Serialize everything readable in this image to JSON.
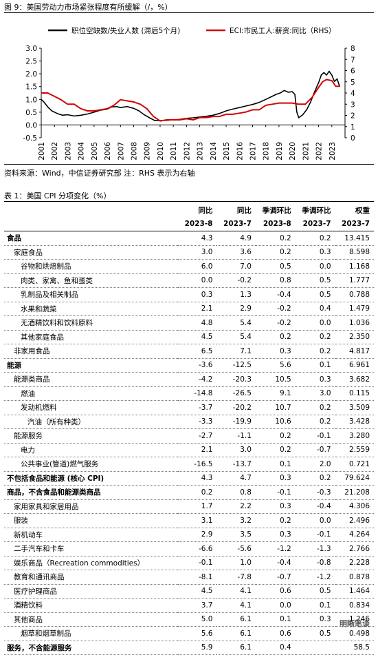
{
  "figure": {
    "title": "图 9：美国劳动力市场紧张程度有所缓解（/，%）",
    "source": "资料来源：Wind，中信证券研究部  注：RHS 表示为右轴"
  },
  "chart_data": {
    "type": "line",
    "series": [
      {
        "name": "职位空缺数/失业人数 (滞后5个月)",
        "axis": "left",
        "color": "#000000",
        "x": [
          2001.0,
          2001.2,
          2001.5,
          2001.8,
          2002.2,
          2002.6,
          2003.0,
          2003.5,
          2004.0,
          2004.5,
          2005.0,
          2005.5,
          2006.0,
          2006.3,
          2006.7,
          2007.0,
          2007.5,
          2008.0,
          2008.4,
          2008.8,
          2009.2,
          2009.6,
          2010.0,
          2010.5,
          2011.0,
          2011.5,
          2012.0,
          2012.5,
          2013.0,
          2013.5,
          2014.0,
          2014.5,
          2015.0,
          2015.5,
          2016.0,
          2016.5,
          2017.0,
          2017.5,
          2018.0,
          2018.4,
          2018.8,
          2019.1,
          2019.4,
          2019.7,
          2020.0,
          2020.2,
          2020.35,
          2020.5,
          2020.8,
          2021.1,
          2021.4,
          2021.7,
          2022.0,
          2022.2,
          2022.4,
          2022.6,
          2022.8,
          2023.0,
          2023.2,
          2023.4,
          2023.6
        ],
        "values": [
          1.0,
          0.9,
          0.7,
          0.55,
          0.45,
          0.38,
          0.4,
          0.35,
          0.38,
          0.43,
          0.5,
          0.58,
          0.62,
          0.7,
          0.72,
          0.68,
          0.72,
          0.65,
          0.55,
          0.4,
          0.28,
          0.17,
          0.17,
          0.18,
          0.2,
          0.22,
          0.26,
          0.28,
          0.31,
          0.34,
          0.38,
          0.45,
          0.55,
          0.62,
          0.68,
          0.74,
          0.8,
          0.88,
          1.0,
          1.1,
          1.2,
          1.25,
          1.35,
          1.28,
          1.3,
          1.2,
          0.5,
          0.28,
          0.4,
          0.6,
          0.9,
          1.3,
          1.65,
          1.95,
          2.05,
          1.95,
          2.1,
          1.95,
          1.7,
          1.8,
          1.5
        ]
      },
      {
        "name": "ECI:市民工人:薪资:同比（RHS）",
        "axis": "right",
        "color": "#d40000",
        "x": [
          2001.0,
          2001.5,
          2002.0,
          2002.5,
          2003.0,
          2003.5,
          2004.0,
          2004.5,
          2005.0,
          2005.5,
          2006.0,
          2006.5,
          2007.0,
          2007.5,
          2008.0,
          2008.5,
          2009.0,
          2009.5,
          2010.0,
          2010.5,
          2011.0,
          2011.5,
          2012.0,
          2012.5,
          2013.0,
          2013.5,
          2014.0,
          2014.5,
          2015.0,
          2015.5,
          2016.0,
          2016.5,
          2017.0,
          2017.5,
          2018.0,
          2018.5,
          2019.0,
          2019.5,
          2020.0,
          2020.5,
          2021.0,
          2021.5,
          2022.0,
          2022.3,
          2022.6,
          2023.0,
          2023.3,
          2023.6
        ],
        "values": [
          4.0,
          4.0,
          3.7,
          3.4,
          3.0,
          3.0,
          2.6,
          2.4,
          2.4,
          2.5,
          2.6,
          2.9,
          3.4,
          3.3,
          3.2,
          3.0,
          2.6,
          1.9,
          1.5,
          1.6,
          1.6,
          1.6,
          1.7,
          1.6,
          1.8,
          1.8,
          1.9,
          1.9,
          2.1,
          2.1,
          2.2,
          2.3,
          2.5,
          2.5,
          2.9,
          3.0,
          3.1,
          3.1,
          3.1,
          3.0,
          3.0,
          3.6,
          4.5,
          5.0,
          5.2,
          5.1,
          4.6,
          4.6
        ]
      }
    ],
    "y_left": {
      "ticks": [
        "-0.5",
        "0.0",
        "0.5",
        "1.0",
        "1.5",
        "2.0",
        "2.5",
        "3.0"
      ],
      "lim": [
        -0.5,
        3.0
      ]
    },
    "y_right": {
      "ticks": [
        "0",
        "1",
        "2",
        "3",
        "4",
        "5",
        "6",
        "7",
        "8"
      ],
      "lim": [
        0,
        8
      ]
    },
    "x_ticks": [
      "2001",
      "2002",
      "2003",
      "2004",
      "2005",
      "2006",
      "2007",
      "2008",
      "2009",
      "2010",
      "2011",
      "2012",
      "2013",
      "2014",
      "2015",
      "2016",
      "2017",
      "2018",
      "2019",
      "2020",
      "2021",
      "2022",
      "2023"
    ],
    "legend": "top",
    "grid": false
  },
  "table": {
    "title": "表 1：美国 CPI 分项变化（%）",
    "headers_top": [
      "",
      "同比",
      "同比",
      "季调环比",
      "季调环比",
      "权重"
    ],
    "headers_bottom": [
      "",
      "2023-8",
      "2023-7",
      "2023-8",
      "2023-7",
      "2023-7"
    ],
    "rows": [
      {
        "level": 0,
        "name": "食品",
        "v": [
          "4.3",
          "4.9",
          "0.2",
          "0.2",
          "13.415"
        ]
      },
      {
        "level": 1,
        "name": "家庭食品",
        "v": [
          "3.0",
          "3.6",
          "0.2",
          "0.3",
          "8.598"
        ]
      },
      {
        "level": 2,
        "name": "谷物和烘焙制品",
        "v": [
          "6.0",
          "7.0",
          "0.5",
          "0.0",
          "1.168"
        ]
      },
      {
        "level": 2,
        "name": "肉类、家禽、鱼和蛋类",
        "v": [
          "0.0",
          "-0.2",
          "0.8",
          "0.5",
          "1.777"
        ]
      },
      {
        "level": 2,
        "name": "乳制品及相关制品",
        "v": [
          "0.3",
          "1.3",
          "-0.4",
          "0.5",
          "0.788"
        ]
      },
      {
        "level": 2,
        "name": "水果和蔬菜",
        "v": [
          "2.1",
          "2.9",
          "-0.2",
          "0.4",
          "1.479"
        ]
      },
      {
        "level": 2,
        "name": "无酒精饮料和饮料原料",
        "v": [
          "4.8",
          "5.4",
          "-0.2",
          "0.0",
          "1.036"
        ]
      },
      {
        "level": 2,
        "name": "其他家庭食品",
        "v": [
          "4.5",
          "5.4",
          "0.2",
          "0.2",
          "2.350"
        ]
      },
      {
        "level": 1,
        "name": "非家用食品",
        "v": [
          "6.5",
          "7.1",
          "0.3",
          "0.2",
          "4.817"
        ]
      },
      {
        "level": 0,
        "name": "能源",
        "v": [
          "-3.6",
          "-12.5",
          "5.6",
          "0.1",
          "6.961"
        ]
      },
      {
        "level": 1,
        "name": "能源类商品",
        "v": [
          "-4.2",
          "-20.3",
          "10.5",
          "0.3",
          "3.682"
        ]
      },
      {
        "level": 2,
        "name": "燃油",
        "v": [
          "-14.8",
          "-26.5",
          "9.1",
          "3.0",
          "0.115"
        ]
      },
      {
        "level": 2,
        "name": "发动机燃料",
        "v": [
          "-3.7",
          "-20.2",
          "10.7",
          "0.2",
          "3.509"
        ]
      },
      {
        "level": 3,
        "name": "汽油（所有种类）",
        "v": [
          "-3.3",
          "-19.9",
          "10.6",
          "0.2",
          "3.428"
        ]
      },
      {
        "level": 1,
        "name": "能源服务",
        "v": [
          "-2.7",
          "-1.1",
          "0.2",
          "-0.1",
          "3.280"
        ]
      },
      {
        "level": 2,
        "name": "电力",
        "v": [
          "2.1",
          "3.0",
          "0.2",
          "-0.7",
          "2.559"
        ]
      },
      {
        "level": 2,
        "name": "公共事业(管道)燃气服务",
        "v": [
          "-16.5",
          "-13.7",
          "0.1",
          "2.0",
          "0.721"
        ]
      },
      {
        "level": 0,
        "name": "不包括食品和能源 (核心 CPI)",
        "v": [
          "4.3",
          "4.7",
          "0.3",
          "0.2",
          "79.624"
        ]
      },
      {
        "level": 0,
        "name": "商品，不含食品和能源类商品",
        "v": [
          "0.2",
          "0.8",
          "-0.1",
          "-0.3",
          "21.208"
        ]
      },
      {
        "level": 1,
        "name": "家用家具和家居用品",
        "v": [
          "1.7",
          "2.2",
          "0.3",
          "-0.4",
          "4.306"
        ]
      },
      {
        "level": 1,
        "name": "服装",
        "v": [
          "3.1",
          "3.2",
          "0.2",
          "0.0",
          "2.496"
        ]
      },
      {
        "level": 1,
        "name": "新机动车",
        "v": [
          "2.9",
          "3.5",
          "0.3",
          "-0.1",
          "4.264"
        ]
      },
      {
        "level": 1,
        "name": "二手汽车和卡车",
        "v": [
          "-6.6",
          "-5.6",
          "-1.2",
          "-1.3",
          "2.766"
        ]
      },
      {
        "level": 1,
        "name": "娱乐商品（Recreation commodities）",
        "v": [
          "-0.1",
          "1.0",
          "-0.4",
          "-0.8",
          "2.228"
        ]
      },
      {
        "level": 1,
        "name": "教育和通讯商品",
        "v": [
          "-8.1",
          "-7.8",
          "-0.7",
          "-1.2",
          "0.878"
        ]
      },
      {
        "level": 1,
        "name": "医疗护理商品",
        "v": [
          "4.5",
          "4.1",
          "0.6",
          "0.5",
          "1.464"
        ]
      },
      {
        "level": 1,
        "name": "酒精饮料",
        "v": [
          "3.7",
          "4.1",
          "0.0",
          "0.1",
          "0.834"
        ]
      },
      {
        "level": 1,
        "name": "其他商品",
        "v": [
          "5.0",
          "6.1",
          "0.1",
          "0.3",
          "1.246"
        ]
      },
      {
        "level": 2,
        "name": "烟草和烟草制品",
        "v": [
          "5.6",
          "6.1",
          "0.6",
          "0.5",
          "0.498"
        ]
      },
      {
        "level": 0,
        "name": "服务，不含能源服务",
        "v": [
          "5.9",
          "6.1",
          "0.4",
          "",
          "58.5"
        ]
      }
    ]
  },
  "watermark": "明晰笔谈"
}
